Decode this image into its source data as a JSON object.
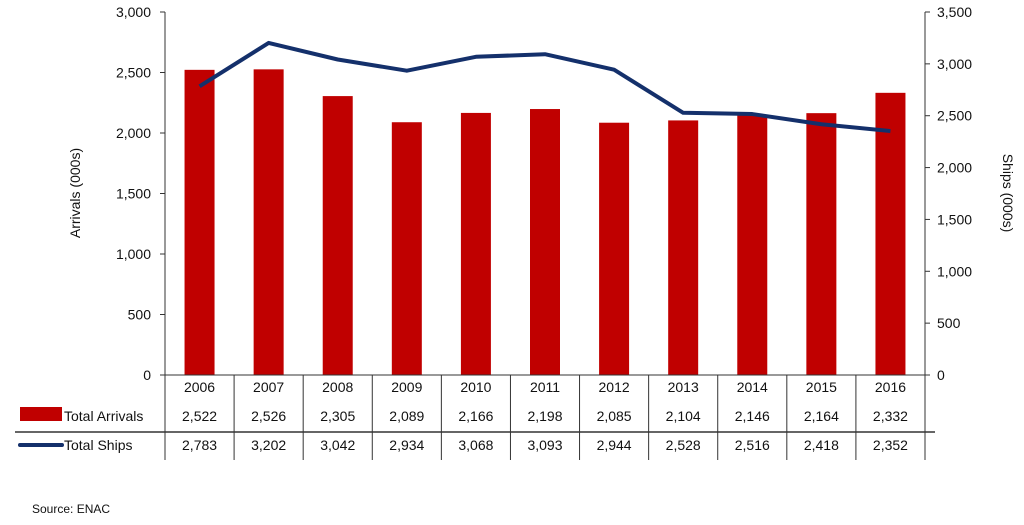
{
  "chart_data": {
    "type": "bar+line",
    "categories": [
      "2006",
      "2007",
      "2008",
      "2009",
      "2010",
      "2011",
      "2012",
      "2013",
      "2014",
      "2015",
      "2016"
    ],
    "series": [
      {
        "name": "Total Arrivals",
        "type": "bar",
        "axis": "left",
        "color": "#c00000",
        "values": [
          2522,
          2526,
          2305,
          2089,
          2166,
          2198,
          2085,
          2104,
          2146,
          2164,
          2332
        ],
        "labels": [
          "2,522",
          "2,526",
          "2,305",
          "2,089",
          "2,166",
          "2,198",
          "2,085",
          "2,104",
          "2,146",
          "2,164",
          "2,332"
        ]
      },
      {
        "name": "Total Ships",
        "type": "line",
        "axis": "right",
        "color": "#14306b",
        "values": [
          2783,
          3202,
          3042,
          2934,
          3068,
          3093,
          2944,
          2528,
          2516,
          2418,
          2352
        ],
        "labels": [
          "2,783",
          "3,202",
          "3,042",
          "2,934",
          "3,068",
          "3,093",
          "2,944",
          "2,528",
          "2,516",
          "2,418",
          "2,352"
        ]
      }
    ],
    "ylabel": "Arrivals (000s)",
    "y2label": "Ships (000s)",
    "ylim": [
      0,
      3000
    ],
    "y2lim": [
      0,
      3500
    ],
    "yticks": [
      "0",
      "500",
      "1,000",
      "1,500",
      "2,000",
      "2,500",
      "3,000"
    ],
    "y2ticks": [
      "0",
      "500",
      "1,000",
      "1,500",
      "2,000",
      "2,500",
      "3,000",
      "3,500"
    ],
    "grid": false,
    "legend": "data-table-below"
  },
  "source": "Source: ENAC"
}
